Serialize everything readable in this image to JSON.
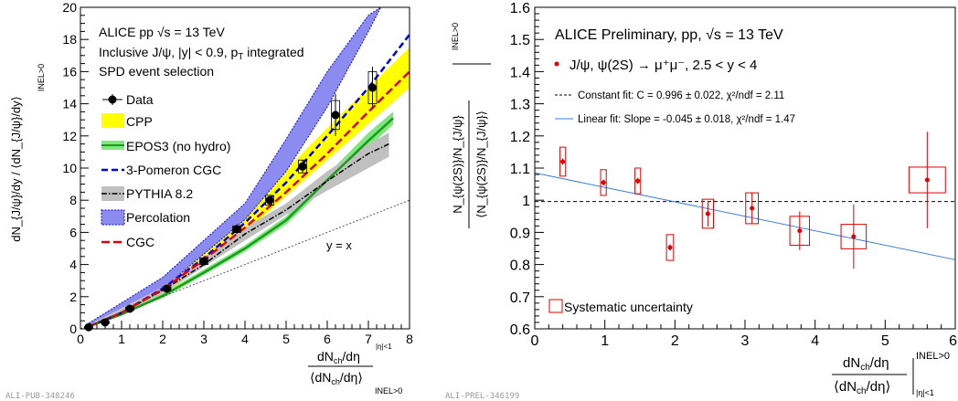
{
  "chart_data": [
    {
      "type": "line",
      "id": "left",
      "xlim": [
        0,
        8
      ],
      "ylim": [
        0,
        20
      ],
      "xticks": [
        "0",
        "1",
        "2",
        "3",
        "4",
        "5",
        "6",
        "7",
        "8"
      ],
      "yticks": [
        "0",
        "2",
        "4",
        "6",
        "8",
        "10",
        "12",
        "14",
        "16",
        "18",
        "20"
      ],
      "x_tick_values": [
        0,
        1,
        2,
        3,
        4,
        5,
        6,
        7,
        8
      ],
      "y_tick_values": [
        0,
        2,
        4,
        6,
        8,
        10,
        12,
        14,
        16,
        18,
        20
      ],
      "ylabel": "dN_{J/ψ}/dy / ⟨dN_{J/ψ}/dy⟩",
      "ylabel_suffix": "INEL>0",
      "xlabel_num": "dN",
      "xlabel_num_sub": "ch",
      "xlabel_num_rest": "/dη",
      "xlabel_num_sup": "|η|<1",
      "xlabel_den": "⟨dN",
      "xlabel_den_sub": "ch",
      "xlabel_den_rest": "/dη⟩",
      "xlabel_den_suffix": "INEL>0",
      "annotation_lines": [
        "ALICE pp √s = 13 TeV",
        "Inclusive J/ψ, |y| < 0.9, p",
        "SPD event selection"
      ],
      "annotation_line2_sub": "T",
      "annotation_line2_rest": " integrated",
      "yx_label": "y = x",
      "legend": [
        "Data",
        "CPP",
        "EPOS3 (no hydro)",
        "3-Pomeron CGC",
        "PYTHIA 8.2",
        "Percolation",
        "CGC"
      ],
      "legend_placement": "upper-left",
      "data": {
        "x": [
          0.2,
          0.6,
          1.2,
          2.1,
          3.0,
          3.8,
          4.6,
          5.4,
          6.2,
          7.1
        ],
        "y": [
          0.1,
          0.4,
          1.25,
          2.5,
          4.2,
          6.2,
          8.0,
          10.1,
          13.3,
          15.0
        ],
        "stat_err": [
          0.05,
          0.08,
          0.1,
          0.15,
          0.25,
          0.3,
          0.3,
          0.4,
          1.3,
          1.3
        ],
        "sys_err": [
          0.05,
          0.06,
          0.1,
          0.12,
          0.2,
          0.2,
          0.3,
          0.4,
          0.9,
          1.0
        ]
      },
      "bands": [
        {
          "name": "CPP",
          "color": "#ffff00",
          "x": [
            0.2,
            2.0,
            4.0,
            6.0,
            8.0
          ],
          "lower": [
            0.15,
            2.0,
            6.0,
            10.5,
            15.0
          ],
          "upper": [
            0.3,
            3.0,
            7.3,
            12.5,
            17.5
          ]
        },
        {
          "name": "Percolation",
          "color": "#8b8bf0",
          "x": [
            0.2,
            2.0,
            4.0,
            5.0,
            6.0,
            7.0,
            7.3
          ],
          "lower": [
            0.1,
            2.5,
            6.8,
            9.8,
            13.8,
            18.5,
            20.0
          ],
          "upper": [
            0.35,
            3.2,
            7.8,
            11.8,
            16.0,
            19.5,
            20.0
          ]
        },
        {
          "name": "EPOS3 (no hydro)",
          "color": "#7ee87e",
          "x": [
            0.2,
            2.0,
            4.0,
            5.0,
            6.0,
            7.0,
            7.6
          ],
          "lower": [
            0.1,
            1.9,
            4.8,
            6.5,
            8.9,
            11.3,
            12.7
          ],
          "upper": [
            0.2,
            2.2,
            5.2,
            7.0,
            9.6,
            12.2,
            13.5
          ]
        },
        {
          "name": "PYTHIA 8.2",
          "color": "#c0c0c0",
          "x": [
            0.2,
            2.0,
            4.0,
            5.0,
            6.0,
            7.0,
            7.5
          ],
          "lower": [
            0.1,
            2.2,
            5.5,
            7.1,
            8.6,
            10.0,
            10.7
          ],
          "upper": [
            0.25,
            2.6,
            6.3,
            7.8,
            9.8,
            11.5,
            12.2
          ]
        }
      ],
      "curves": [
        {
          "name": "EPOS3 (no hydro)",
          "color": "#1a9c1a",
          "style": "solid",
          "x": [
            0.2,
            1.0,
            2.0,
            3.0,
            4.0,
            5.0,
            6.0,
            7.0,
            7.6
          ],
          "y": [
            0.15,
            0.9,
            2.05,
            3.5,
            5.0,
            6.75,
            9.25,
            11.7,
            13.1
          ]
        },
        {
          "name": "3-Pomeron CGC",
          "color": "#0000e0",
          "style": "dashed",
          "x": [
            0.2,
            1.0,
            2.0,
            3.0,
            4.0,
            5.0,
            6.0,
            7.0,
            8.0
          ],
          "y": [
            0.15,
            1.0,
            2.5,
            4.4,
            6.6,
            9.1,
            12.0,
            15.0,
            18.3
          ]
        },
        {
          "name": "PYTHIA 8.2",
          "color": "#000000",
          "style": "dashdot",
          "x": [
            0.2,
            1.0,
            2.0,
            3.0,
            4.0,
            5.0,
            6.0,
            7.0,
            7.5
          ],
          "y": [
            0.15,
            1.0,
            2.4,
            4.0,
            5.9,
            7.4,
            9.2,
            10.9,
            11.5
          ]
        },
        {
          "name": "CGC",
          "color": "#e00000",
          "style": "longdash",
          "x": [
            0.2,
            1.0,
            2.0,
            3.0,
            4.0,
            5.0,
            6.0,
            7.0,
            8.0
          ],
          "y": [
            0.15,
            1.0,
            2.45,
            4.3,
            6.3,
            8.5,
            10.9,
            13.5,
            16.0
          ]
        },
        {
          "name": "y = x",
          "color": "#555555",
          "style": "dotted",
          "x": [
            0,
            8
          ],
          "y": [
            0,
            8
          ]
        }
      ],
      "footer": "ALI-PUB-348246"
    },
    {
      "type": "scatter",
      "id": "right",
      "xlim": [
        0,
        6
      ],
      "ylim": [
        0.6,
        1.6
      ],
      "xticks": [
        "0",
        "1",
        "2",
        "3",
        "4",
        "5",
        "6"
      ],
      "yticks": [
        "0.6",
        "0.7",
        "0.8",
        "0.9",
        "1",
        "1.1",
        "1.2",
        "1.3",
        "1.4",
        "1.5",
        "1.6"
      ],
      "x_tick_values": [
        0,
        1,
        2,
        3,
        4,
        5,
        6
      ],
      "y_tick_values": [
        0.6,
        0.7,
        0.8,
        0.9,
        1.0,
        1.1,
        1.2,
        1.3,
        1.4,
        1.5,
        1.6
      ],
      "ylabel_main": "N_{ψ(2S)}/N_{J/ψ}",
      "ylabel_den": "⟨N_{ψ(2S)}/N_{J/ψ}⟩",
      "ylabel_suffix": "INEL>0",
      "xlabel_num": "dN",
      "xlabel_num_sub": "ch",
      "xlabel_num_rest": "/dη",
      "xlabel_num_suffix": "INEL>0",
      "xlabel_den": "⟨dN",
      "xlabel_den_sub": "ch",
      "xlabel_den_rest": "/dη⟩",
      "xlabel_den_suffix": "|η|<1",
      "title": "ALICE Preliminary, pp, √s = 13 TeV",
      "legend_entry": "J/ψ, ψ(2S) → μ⁺μ⁻, 2.5 < y < 4",
      "constant_fit_label": "Constant fit: C = 0.996 ± 0.022, χ²/ndf = 2.11",
      "linear_fit_label": "Linear fit: Slope = -0.045 ± 0.018, χ²/ndf = 1.47",
      "syst_label": "Systematic uncertainty",
      "points": {
        "x": [
          0.4,
          0.98,
          1.47,
          1.93,
          2.47,
          3.1,
          3.78,
          4.55,
          5.6
        ],
        "y": [
          1.12,
          1.055,
          1.06,
          0.853,
          0.958,
          0.975,
          0.905,
          0.887,
          1.063
        ],
        "stat_err": [
          0.01,
          0.01,
          0.01,
          0.01,
          0.04,
          0.05,
          0.06,
          0.1,
          0.15
        ],
        "sys_err": [
          0.045,
          0.04,
          0.04,
          0.04,
          0.045,
          0.048,
          0.045,
          0.038,
          0.04
        ],
        "sys_halfwidth": [
          0.04,
          0.04,
          0.04,
          0.05,
          0.08,
          0.09,
          0.14,
          0.18,
          0.26
        ]
      },
      "constant_fit": {
        "value": 0.996,
        "color": "#000000",
        "style": "dashed"
      },
      "linear_fit": {
        "x": [
          0,
          6
        ],
        "y": [
          1.085,
          0.815
        ],
        "color": "#3d7fd9"
      },
      "point_color": "#e00000",
      "footer": "ALI-PREL-346199"
    }
  ]
}
